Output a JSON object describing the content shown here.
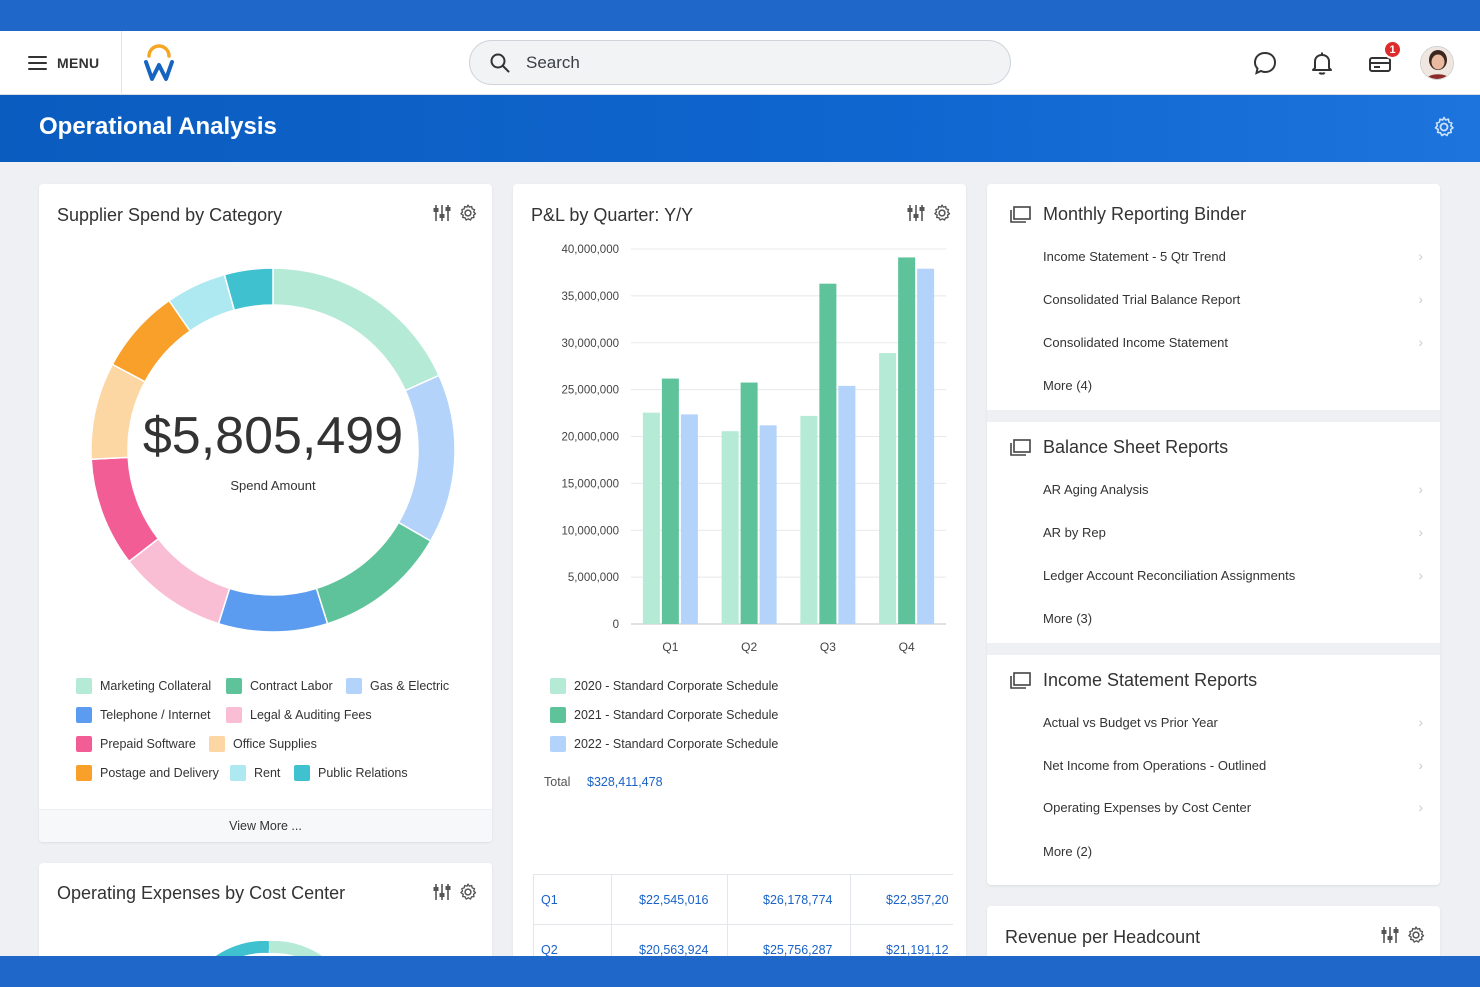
{
  "topbar": {
    "menu_label": "MENU",
    "search_placeholder": "Search",
    "notification_badge": "1"
  },
  "header": {
    "title": "Operational Analysis"
  },
  "supplier_card": {
    "title": "Supplier Spend by Category",
    "total_value": "$5,805,499",
    "total_label": "Spend Amount",
    "view_more": "View More ..."
  },
  "opex_card": {
    "title": "Operating Expenses by Cost Center"
  },
  "pl_card": {
    "title": "P&L by Quarter: Y/Y",
    "total_label": "Total",
    "total_value": "$328,411,478",
    "table": [
      {
        "q": "Q1",
        "v2020": "$22,545,016",
        "v2021": "$26,178,774",
        "v2022": "$22,357,20"
      },
      {
        "q": "Q2",
        "v2020": "$20,563,924",
        "v2021": "$25,756,287",
        "v2022": "$21,191,12"
      }
    ]
  },
  "revenue_card": {
    "title": "Revenue per Headcount"
  },
  "monthly_binder": {
    "title": "Monthly Reporting Binder",
    "items": [
      "Income Statement - 5 Qtr Trend",
      "Consolidated Trial Balance Report",
      "Consolidated Income Statement"
    ],
    "more": "More (4)"
  },
  "balance_sheet": {
    "title": "Balance Sheet Reports",
    "items": [
      "AR Aging Analysis",
      "AR by Rep",
      "Ledger Account Reconciliation Assignments"
    ],
    "more": "More (3)"
  },
  "income_statement": {
    "title": "Income Statement Reports",
    "items": [
      "Actual vs Budget vs Prior Year",
      "Net Income from Operations - Outlined",
      "Operating Expenses by Cost Center"
    ],
    "more": "More (2)"
  },
  "chart_data": [
    {
      "type": "pie",
      "categories": [
        "Marketing Collateral",
        "Gas & Electric",
        "Contract Labor",
        "Telephone / Internet",
        "Legal & Auditing Fees",
        "Prepaid Software",
        "Office Supplies",
        "Postage and Delivery",
        "Rent",
        "Public Relations"
      ],
      "values": [
        17,
        14,
        11,
        9,
        9,
        9,
        8,
        7,
        5,
        4
      ],
      "colors": [
        "#b5ead7",
        "#b3d3fb",
        "#5ec39a",
        "#5b9cf0",
        "#f9bdd4",
        "#f25d96",
        "#fcd7a4",
        "#f8a02a",
        "#aee8f0",
        "#3fc1d0"
      ],
      "legend": [
        {
          "name": "Marketing Collateral",
          "color": "#b5ead7"
        },
        {
          "name": "Contract Labor",
          "color": "#5ec39a"
        },
        {
          "name": "Gas & Electric",
          "color": "#b3d3fb"
        },
        {
          "name": "Telephone / Internet",
          "color": "#5b9cf0"
        },
        {
          "name": "Legal & Auditing Fees",
          "color": "#f9bdd4"
        },
        {
          "name": "Prepaid Software",
          "color": "#f25d96"
        },
        {
          "name": "Office Supplies",
          "color": "#fcd7a4"
        },
        {
          "name": "Postage and Delivery",
          "color": "#f8a02a"
        },
        {
          "name": "Rent",
          "color": "#aee8f0"
        },
        {
          "name": "Public Relations",
          "color": "#3fc1d0"
        }
      ],
      "legend_placement": "bottom"
    },
    {
      "type": "bar",
      "categories": [
        "Q1",
        "Q2",
        "Q3",
        "Q4"
      ],
      "series": [
        {
          "name": "2020 - Standard Corporate Schedule",
          "color": "#b5ead7",
          "values": [
            22545016,
            20563924,
            22200000,
            28900000
          ]
        },
        {
          "name": "2021 - Standard Corporate Schedule",
          "color": "#5ec39a",
          "values": [
            26178774,
            25756287,
            36300000,
            39100000
          ]
        },
        {
          "name": "2022 - Standard Corporate Schedule",
          "color": "#b3d3fb",
          "values": [
            22357200,
            21191120,
            25400000,
            37900000
          ]
        }
      ],
      "ylim": [
        0,
        40000000
      ],
      "yticks": [
        "40,000,000",
        "35,000,000",
        "30,000,000",
        "25,000,000",
        "20,000,000",
        "15,000,000",
        "10,000,000",
        "5,000,000",
        "0"
      ],
      "grid": true,
      "legend_placement": "bottom"
    }
  ]
}
